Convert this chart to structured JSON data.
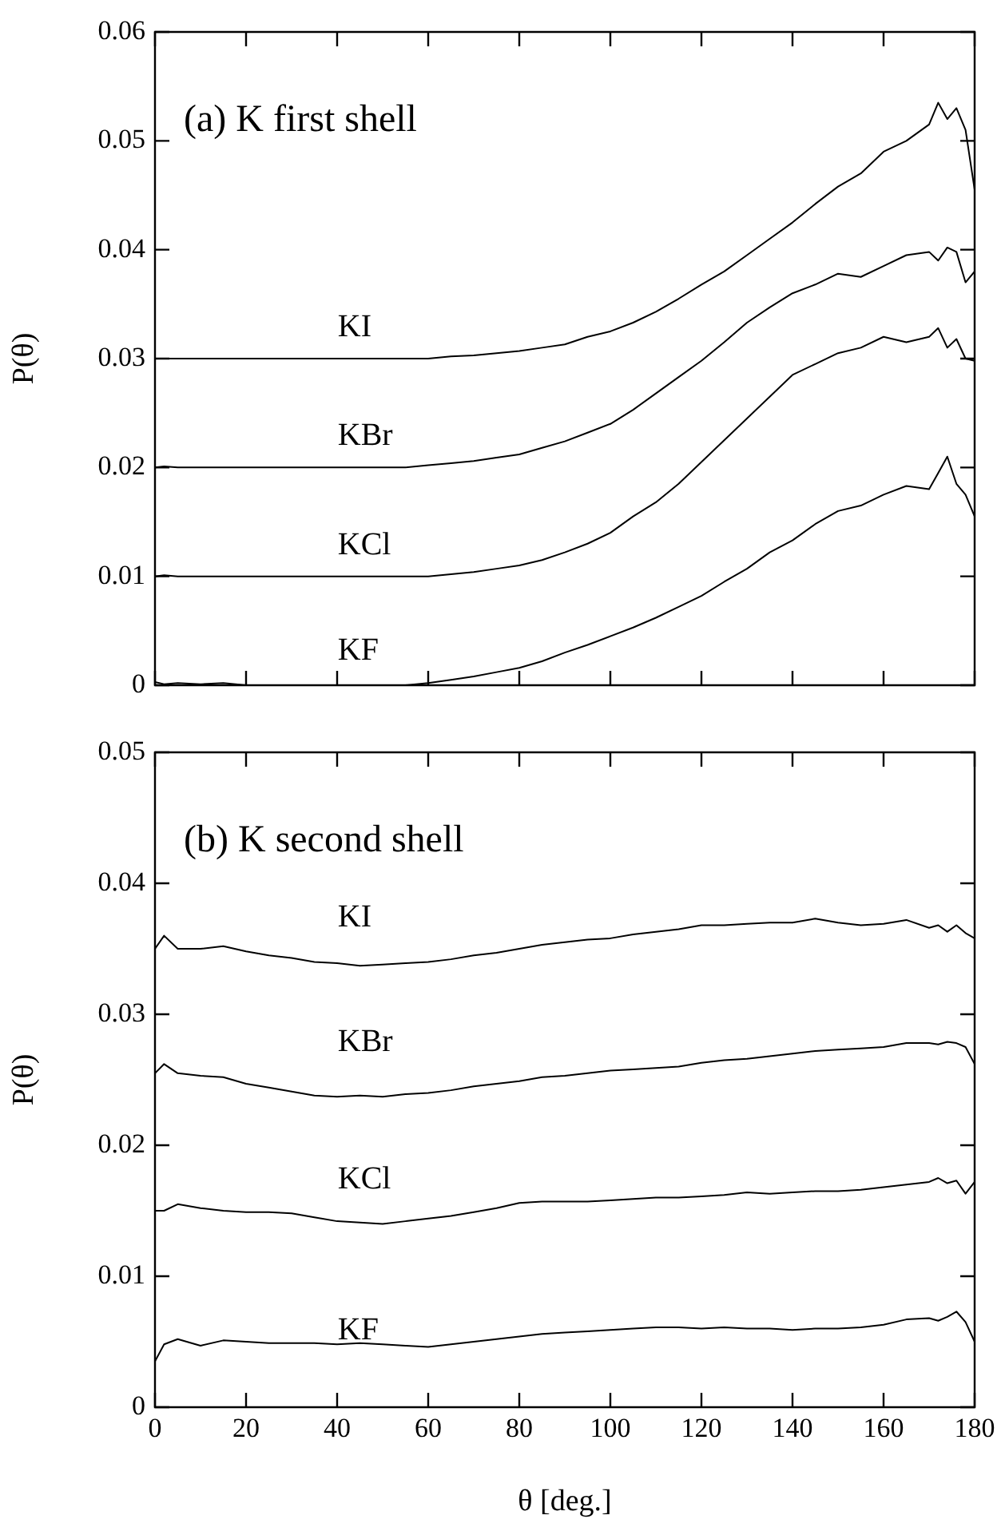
{
  "chart_data": [
    {
      "type": "line",
      "title": "(a) K first shell",
      "ylabel": "P(θ)",
      "xlim": [
        0,
        180
      ],
      "xticks": [
        0,
        20,
        40,
        60,
        80,
        100,
        120,
        140,
        160,
        180
      ],
      "ylim": [
        0,
        0.06
      ],
      "yticks": [
        0,
        0.01,
        0.02,
        0.03,
        0.04,
        0.05,
        0.06
      ],
      "tick_labels": "y",
      "grid": false,
      "legend": false,
      "marker": "none",
      "line_style": "solid",
      "x": [
        0,
        2,
        5,
        10,
        15,
        20,
        25,
        30,
        35,
        40,
        45,
        50,
        55,
        60,
        65,
        70,
        75,
        80,
        85,
        90,
        95,
        100,
        105,
        110,
        115,
        120,
        125,
        130,
        135,
        140,
        145,
        150,
        155,
        160,
        165,
        170,
        172,
        174,
        176,
        178,
        180
      ],
      "series": [
        {
          "name": "KI",
          "color": "#000000",
          "values": [
            0.03,
            0.03,
            0.03,
            0.03,
            0.03,
            0.03,
            0.03,
            0.03,
            0.03,
            0.03,
            0.03,
            0.03,
            0.03,
            0.03,
            0.0302,
            0.0303,
            0.0305,
            0.0307,
            0.031,
            0.0313,
            0.032,
            0.0325,
            0.0333,
            0.0343,
            0.0355,
            0.0368,
            0.038,
            0.0395,
            0.041,
            0.0425,
            0.0442,
            0.0458,
            0.047,
            0.049,
            0.05,
            0.0515,
            0.0535,
            0.052,
            0.053,
            0.051,
            0.0455
          ]
        },
        {
          "name": "KBr",
          "color": "#000000",
          "values": [
            0.02,
            0.0201,
            0.02,
            0.02,
            0.02,
            0.02,
            0.02,
            0.02,
            0.02,
            0.02,
            0.02,
            0.02,
            0.02,
            0.0202,
            0.0204,
            0.0206,
            0.0209,
            0.0212,
            0.0218,
            0.0224,
            0.0232,
            0.024,
            0.0253,
            0.0268,
            0.0283,
            0.0298,
            0.0315,
            0.0333,
            0.0347,
            0.036,
            0.0368,
            0.0378,
            0.0375,
            0.0385,
            0.0395,
            0.0398,
            0.039,
            0.0402,
            0.0398,
            0.037,
            0.038
          ]
        },
        {
          "name": "KCl",
          "color": "#000000",
          "values": [
            0.01,
            0.0101,
            0.01,
            0.01,
            0.01,
            0.01,
            0.01,
            0.01,
            0.01,
            0.01,
            0.01,
            0.01,
            0.01,
            0.01,
            0.0102,
            0.0104,
            0.0107,
            0.011,
            0.0115,
            0.0122,
            0.013,
            0.014,
            0.0155,
            0.0168,
            0.0185,
            0.0205,
            0.0225,
            0.0245,
            0.0265,
            0.0285,
            0.0295,
            0.0305,
            0.031,
            0.032,
            0.0315,
            0.032,
            0.0328,
            0.031,
            0.0318,
            0.03,
            0.0298
          ]
        },
        {
          "name": "KF",
          "color": "#000000",
          "values": [
            0.0003,
            0.0001,
            0.0002,
            0.0001,
            0.0002,
            0,
            0,
            0,
            0,
            0,
            0,
            0,
            0,
            0.0002,
            0.0005,
            0.0008,
            0.0012,
            0.0016,
            0.0022,
            0.003,
            0.0037,
            0.0045,
            0.0053,
            0.0062,
            0.0072,
            0.0082,
            0.0095,
            0.0107,
            0.0122,
            0.0133,
            0.0148,
            0.016,
            0.0165,
            0.0175,
            0.0183,
            0.018,
            0.0195,
            0.021,
            0.0185,
            0.0175,
            0.0155
          ]
        }
      ]
    },
    {
      "type": "line",
      "title": "(b) K second shell",
      "xlabel": "θ [deg.]",
      "ylabel": "P(θ)",
      "xlim": [
        0,
        180
      ],
      "xticks": [
        0,
        20,
        40,
        60,
        80,
        100,
        120,
        140,
        160,
        180
      ],
      "ylim": [
        0,
        0.05
      ],
      "yticks": [
        0,
        0.01,
        0.02,
        0.03,
        0.04,
        0.05
      ],
      "grid": false,
      "legend": false,
      "marker": "none",
      "line_style": "solid",
      "x": [
        0,
        2,
        5,
        10,
        15,
        20,
        25,
        30,
        35,
        40,
        45,
        50,
        55,
        60,
        65,
        70,
        75,
        80,
        85,
        90,
        95,
        100,
        105,
        110,
        115,
        120,
        125,
        130,
        135,
        140,
        145,
        150,
        155,
        160,
        165,
        170,
        172,
        174,
        176,
        178,
        180
      ],
      "series": [
        {
          "name": "KI",
          "color": "#000000",
          "values": [
            0.035,
            0.036,
            0.035,
            0.035,
            0.0352,
            0.0348,
            0.0345,
            0.0343,
            0.034,
            0.0339,
            0.0337,
            0.0338,
            0.0339,
            0.034,
            0.0342,
            0.0345,
            0.0347,
            0.035,
            0.0353,
            0.0355,
            0.0357,
            0.0358,
            0.0361,
            0.0363,
            0.0365,
            0.0368,
            0.0368,
            0.0369,
            0.037,
            0.037,
            0.0373,
            0.037,
            0.0368,
            0.0369,
            0.0372,
            0.0366,
            0.0368,
            0.0363,
            0.0368,
            0.0362,
            0.0358
          ]
        },
        {
          "name": "KBr",
          "color": "#000000",
          "values": [
            0.0255,
            0.0262,
            0.0255,
            0.0253,
            0.0252,
            0.0247,
            0.0244,
            0.0241,
            0.0238,
            0.0237,
            0.0238,
            0.0237,
            0.0239,
            0.024,
            0.0242,
            0.0245,
            0.0247,
            0.0249,
            0.0252,
            0.0253,
            0.0255,
            0.0257,
            0.0258,
            0.0259,
            0.026,
            0.0263,
            0.0265,
            0.0266,
            0.0268,
            0.027,
            0.0272,
            0.0273,
            0.0274,
            0.0275,
            0.0278,
            0.0278,
            0.0277,
            0.0279,
            0.0278,
            0.0275,
            0.0262
          ]
        },
        {
          "name": "KCl",
          "color": "#000000",
          "values": [
            0.015,
            0.015,
            0.0155,
            0.0152,
            0.015,
            0.0149,
            0.0149,
            0.0148,
            0.0145,
            0.0142,
            0.0141,
            0.014,
            0.0142,
            0.0144,
            0.0146,
            0.0149,
            0.0152,
            0.0156,
            0.0157,
            0.0157,
            0.0157,
            0.0158,
            0.0159,
            0.016,
            0.016,
            0.0161,
            0.0162,
            0.0164,
            0.0163,
            0.0164,
            0.0165,
            0.0165,
            0.0166,
            0.0168,
            0.017,
            0.0172,
            0.0175,
            0.0171,
            0.0173,
            0.0163,
            0.0172
          ]
        },
        {
          "name": "KF",
          "color": "#000000",
          "values": [
            0.0035,
            0.0048,
            0.0052,
            0.0047,
            0.0051,
            0.005,
            0.0049,
            0.0049,
            0.0049,
            0.0048,
            0.0049,
            0.0048,
            0.0047,
            0.0046,
            0.0048,
            0.005,
            0.0052,
            0.0054,
            0.0056,
            0.0057,
            0.0058,
            0.0059,
            0.006,
            0.0061,
            0.0061,
            0.006,
            0.0061,
            0.006,
            0.006,
            0.0059,
            0.006,
            0.006,
            0.0061,
            0.0063,
            0.0067,
            0.0068,
            0.0066,
            0.0069,
            0.0073,
            0.0065,
            0.005
          ]
        }
      ]
    }
  ]
}
